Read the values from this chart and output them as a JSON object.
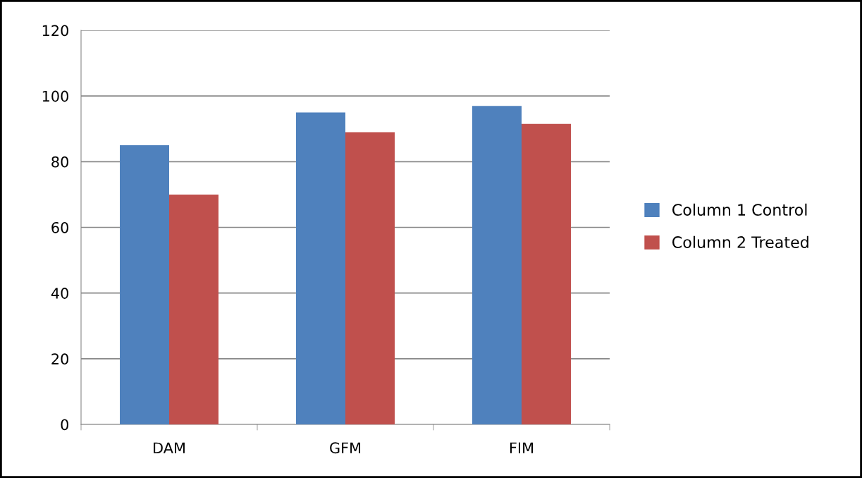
{
  "chart_data": {
    "type": "bar",
    "categories": [
      "DAM",
      "GFM",
      "FIM"
    ],
    "series": [
      {
        "name": "Column 1 Control",
        "color": "#4f81bd",
        "values": [
          85,
          95,
          97
        ]
      },
      {
        "name": "Column 2 Treated",
        "color": "#c0504d",
        "values": [
          70,
          89,
          91.5
        ]
      }
    ],
    "ylim": [
      0,
      120
    ],
    "yticks": [
      0,
      20,
      40,
      60,
      80,
      100,
      120
    ],
    "grid": "y",
    "legend": "right"
  }
}
